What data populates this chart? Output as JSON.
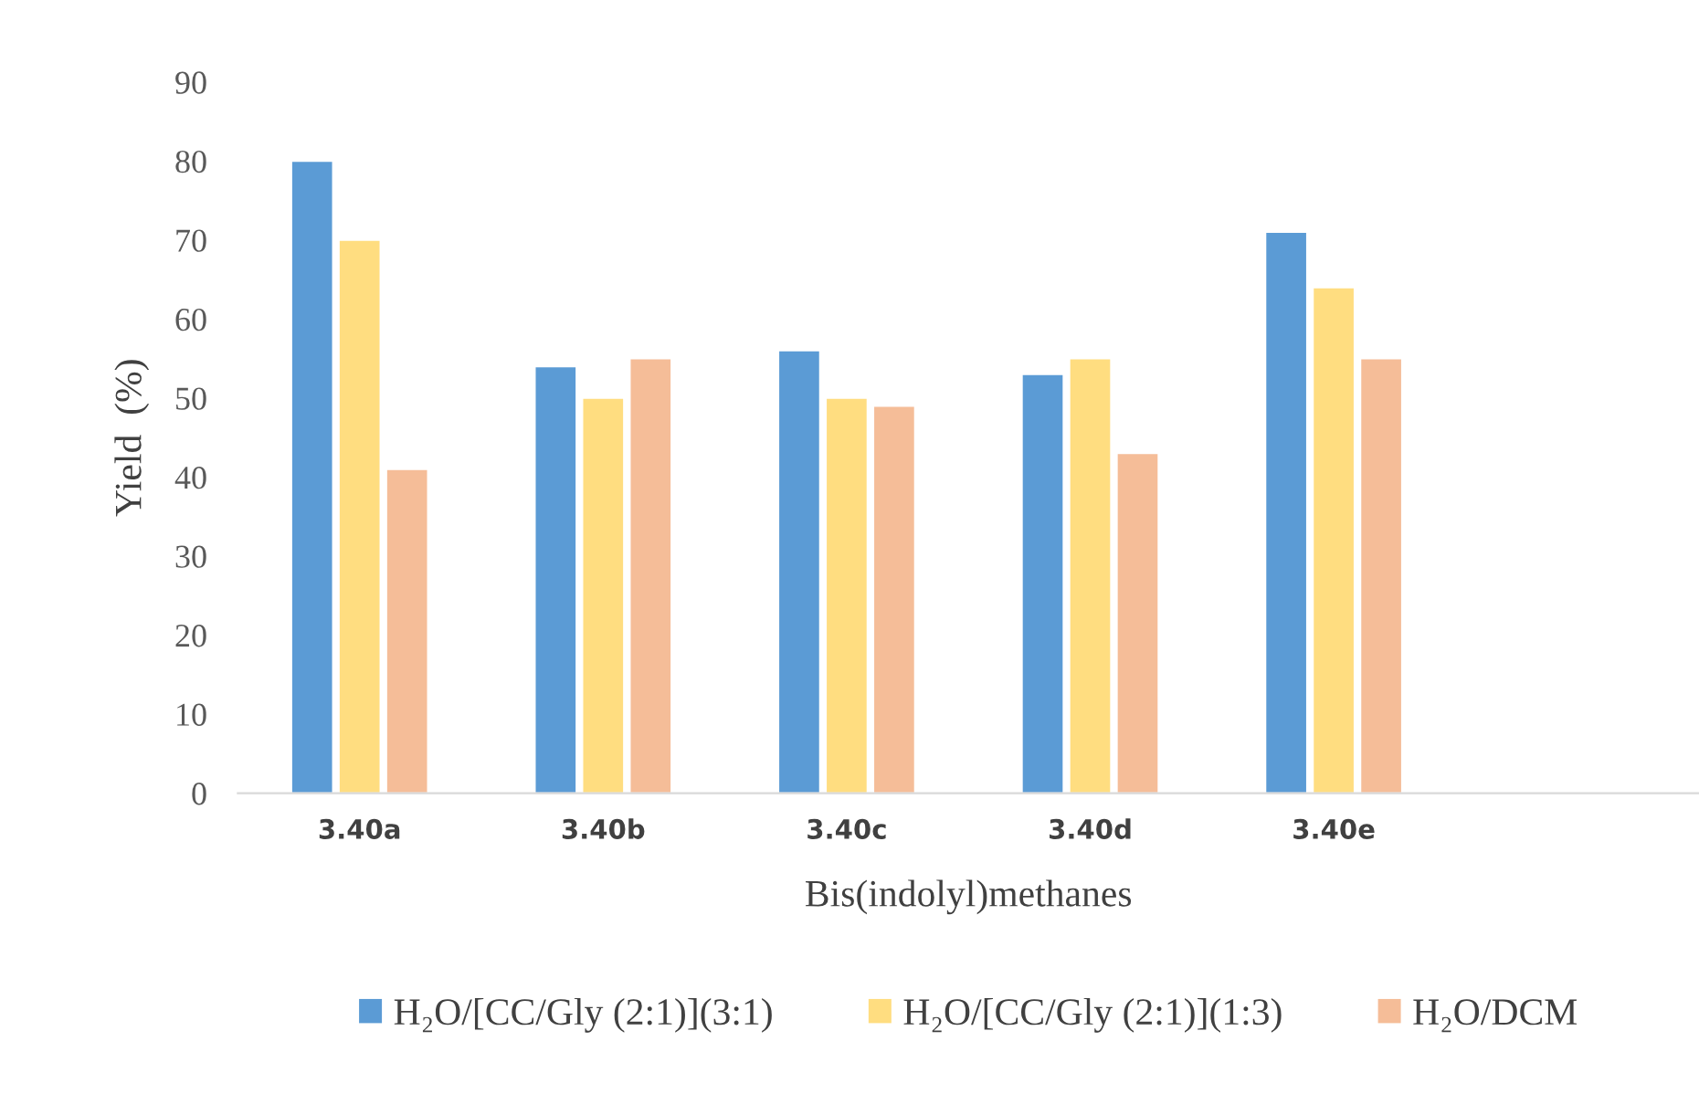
{
  "chart_data": {
    "type": "bar",
    "xlabel": "Bis(indolyl)methanes",
    "ylabel": "Yield  (%)",
    "categories": [
      "3.40a",
      "3.40b",
      "3.40c",
      "3.40d",
      "3.40e",
      null
    ],
    "series": [
      {
        "name": "H₂O/[CC/Gly (2:1)](3:1)",
        "color": "#5b9bd5",
        "values": [
          80,
          54,
          56,
          53,
          71,
          null
        ]
      },
      {
        "name": "H₂O/[CC/Gly (2:1)](1:3)",
        "color": "#ffdd80",
        "values": [
          70,
          50,
          50,
          55,
          64,
          null
        ]
      },
      {
        "name": "H₂O/DCM",
        "color": "#f5bd98",
        "values": [
          41,
          55,
          49,
          43,
          55,
          null
        ]
      }
    ],
    "ylim": [
      0,
      90
    ],
    "yticks": [
      0,
      10,
      20,
      30,
      40,
      50,
      60,
      70,
      80,
      90
    ],
    "grid": false,
    "legend": "bottom"
  }
}
